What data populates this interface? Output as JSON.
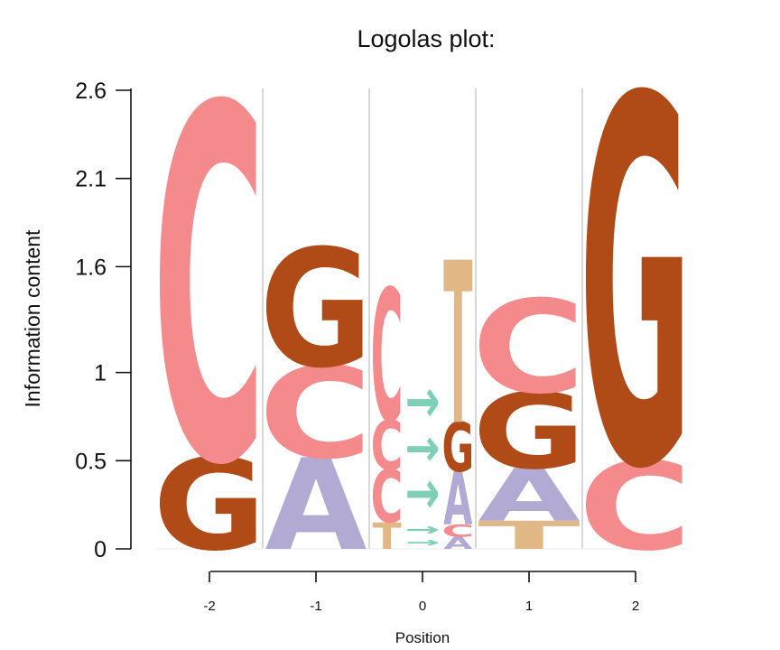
{
  "chart_data": {
    "type": "sequence-logo",
    "title": "Logolas plot:",
    "xlabel": "Position",
    "ylabel": "Information content",
    "ylim": [
      0,
      2.6
    ],
    "yticks": [
      "0",
      "0.5",
      "1",
      "1.6",
      "2.1",
      "2.6"
    ],
    "ytick_values": [
      0,
      0.5,
      1,
      1.6,
      2.1,
      2.6
    ],
    "xticks": [
      "-2",
      "-1",
      "0",
      "1",
      "2"
    ],
    "colors": {
      "A": "#b3aad4",
      "C": "#f48a8c",
      "G": "#b04a17",
      "T": "#e0b785",
      "arrow": "#7ecfb8"
    },
    "columns": [
      {
        "position": "-2",
        "stacks": [
          [
            {
              "symbol": "G",
              "height": 0.52
            },
            {
              "symbol": "C",
              "height": 2.01
            }
          ]
        ]
      },
      {
        "position": "-1",
        "stacks": [
          [
            {
              "symbol": "A",
              "height": 0.52
            },
            {
              "symbol": "C",
              "height": 0.52
            },
            {
              "symbol": "G",
              "height": 0.67
            }
          ]
        ]
      },
      {
        "position": "0",
        "stacks": [
          [
            {
              "symbol": "T",
              "height": 0.15
            },
            {
              "symbol": "C",
              "height": 0.3
            },
            {
              "symbol": "C",
              "height": 0.28
            },
            {
              "symbol": "C",
              "height": 0.75
            }
          ],
          [
            {
              "symbol": "→",
              "height": 0.06
            },
            {
              "symbol": "→",
              "height": 0.08
            },
            {
              "symbol": "→",
              "height": 0.28
            },
            {
              "symbol": "→",
              "height": 0.24
            },
            {
              "symbol": "→",
              "height": 0.28
            }
          ],
          [
            {
              "symbol": "A",
              "height": 0.07
            },
            {
              "symbol": "C",
              "height": 0.07
            },
            {
              "symbol": "A",
              "height": 0.3
            },
            {
              "symbol": "G",
              "height": 0.28
            },
            {
              "symbol": "T",
              "height": 0.92
            }
          ]
        ]
      },
      {
        "position": "1",
        "stacks": [
          [
            {
              "symbol": "T",
              "height": 0.16
            },
            {
              "symbol": "A",
              "height": 0.3
            },
            {
              "symbol": "G",
              "height": 0.43
            },
            {
              "symbol": "C",
              "height": 0.53
            }
          ]
        ]
      },
      {
        "position": "2",
        "stacks": [
          [
            {
              "symbol": "C",
              "height": 0.5
            },
            {
              "symbol": "G",
              "height": 2.08
            }
          ]
        ]
      }
    ]
  }
}
